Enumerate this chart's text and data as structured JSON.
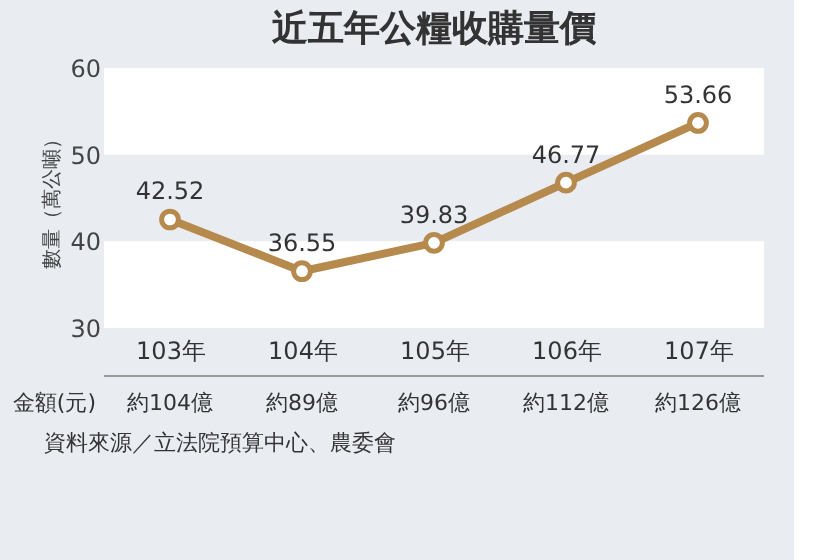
{
  "chart_data": {
    "type": "line",
    "title": "近五年公糧收購量價",
    "ylabel": "數量（萬公噸）",
    "categories": [
      "103年",
      "104年",
      "105年",
      "106年",
      "107年"
    ],
    "series": [
      {
        "color": "#b58a4c",
        "values": [
          42.52,
          36.55,
          39.83,
          46.77,
          53.66
        ]
      }
    ],
    "ylim": [
      30,
      60
    ],
    "yticks": [
      30,
      40,
      50,
      60
    ],
    "grid": false,
    "marker": "circle",
    "line_style": "solid",
    "data_labels": true,
    "bands": [
      {
        "axis": "y",
        "from": 30,
        "to": 40,
        "color": "#ffffff"
      },
      {
        "axis": "y",
        "from": 50,
        "to": 60,
        "color": "#ffffff"
      }
    ],
    "annotations": [
      "金額(元)",
      "約104億",
      "約89億",
      "約96億",
      "約112億",
      "約126億",
      "資料來源／立法院預算中心、農委會"
    ]
  }
}
